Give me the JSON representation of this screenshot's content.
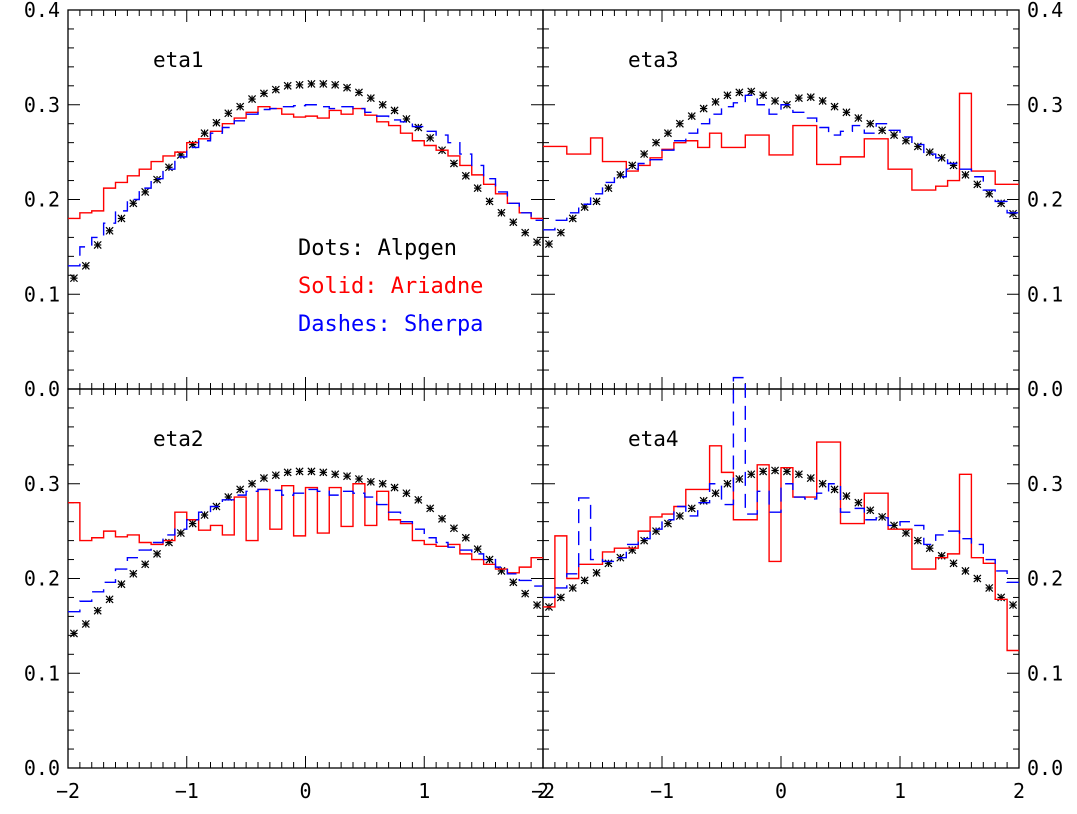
{
  "chart_data": {
    "type": "line",
    "layout": "2x2 panels with shared axes",
    "xlim": [
      -2,
      2
    ],
    "ylim": [
      0,
      0.4
    ],
    "x_ticks": [
      "−2",
      "−1",
      "0",
      "1",
      "2"
    ],
    "x_tick_values": [
      -2,
      -1,
      0,
      1,
      2
    ],
    "y_ticks": [
      "0.0",
      "0.1",
      "0.2",
      "0.3",
      "0.4"
    ],
    "y_tick_values": [
      0,
      0.1,
      0.2,
      0.3,
      0.4
    ],
    "legend": {
      "placement": "inside top-left panel, center-right",
      "entries": [
        {
          "label": "Dots: Alpgen",
          "color": "#000000",
          "style": "markers"
        },
        {
          "label": "Solid: Ariadne",
          "color": "#ff0000",
          "style": "solid-histogram"
        },
        {
          "label": "Dashes: Sherpa",
          "color": "#0000ff",
          "style": "dashed-histogram"
        }
      ]
    },
    "bin_edges": [
      -2.0,
      -1.9,
      -1.8,
      -1.7,
      -1.6,
      -1.5,
      -1.4,
      -1.3,
      -1.2,
      -1.1,
      -1.0,
      -0.9,
      -0.8,
      -0.7,
      -0.6,
      -0.5,
      -0.4,
      -0.3,
      -0.2,
      -0.1,
      0.0,
      0.1,
      0.2,
      0.3,
      0.4,
      0.5,
      0.6,
      0.7,
      0.8,
      0.9,
      1.0,
      1.1,
      1.2,
      1.3,
      1.4,
      1.5,
      1.6,
      1.7,
      1.8,
      1.9,
      2.0
    ],
    "panels": [
      {
        "label": "eta1",
        "position": "top-left",
        "series": [
          {
            "name": "Alpgen",
            "color": "#000000",
            "style": "markers",
            "values": [
              0.117,
              0.13,
              0.152,
              0.167,
              0.18,
              0.196,
              0.208,
              0.221,
              0.234,
              0.247,
              0.258,
              0.27,
              0.281,
              0.291,
              0.298,
              0.306,
              0.312,
              0.316,
              0.32,
              0.321,
              0.322,
              0.322,
              0.321,
              0.318,
              0.313,
              0.307,
              0.3,
              0.294,
              0.285,
              0.276,
              0.265,
              0.252,
              0.238,
              0.225,
              0.212,
              0.198,
              0.186,
              0.176,
              0.165,
              0.155
            ]
          },
          {
            "name": "Ariadne",
            "color": "#ff0000",
            "style": "solid",
            "values": [
              0.18,
              0.186,
              0.188,
              0.212,
              0.218,
              0.225,
              0.232,
              0.24,
              0.246,
              0.25,
              0.26,
              0.264,
              0.272,
              0.28,
              0.286,
              0.292,
              0.298,
              0.296,
              0.29,
              0.287,
              0.288,
              0.286,
              0.294,
              0.29,
              0.296,
              0.289,
              0.282,
              0.278,
              0.27,
              0.262,
              0.257,
              0.252,
              0.246,
              0.236,
              0.226,
              0.216,
              0.206,
              0.196,
              0.186,
              0.18
            ]
          },
          {
            "name": "Sherpa",
            "color": "#0000ff",
            "style": "dashed",
            "values": [
              0.13,
              0.15,
              0.16,
              0.175,
              0.188,
              0.2,
              0.212,
              0.222,
              0.232,
              0.245,
              0.255,
              0.262,
              0.27,
              0.276,
              0.283,
              0.29,
              0.295,
              0.296,
              0.298,
              0.299,
              0.3,
              0.298,
              0.296,
              0.298,
              0.296,
              0.292,
              0.288,
              0.284,
              0.282,
              0.277,
              0.272,
              0.268,
              0.26,
              0.248,
              0.236,
              0.222,
              0.208,
              0.196,
              0.186,
              0.178
            ]
          }
        ]
      },
      {
        "label": "eta3",
        "position": "top-right",
        "series": [
          {
            "name": "Alpgen",
            "color": "#000000",
            "style": "markers",
            "values": [
              0.153,
              0.165,
              0.18,
              0.192,
              0.198,
              0.212,
              0.226,
              0.236,
              0.248,
              0.26,
              0.27,
              0.28,
              0.288,
              0.296,
              0.303,
              0.31,
              0.313,
              0.314,
              0.31,
              0.304,
              0.3,
              0.307,
              0.308,
              0.304,
              0.298,
              0.292,
              0.286,
              0.28,
              0.273,
              0.268,
              0.262,
              0.256,
              0.25,
              0.244,
              0.236,
              0.226,
              0.216,
              0.206,
              0.196,
              0.185
            ]
          },
          {
            "name": "Ariadne",
            "color": "#ff0000",
            "style": "solid",
            "values": [
              0.256,
              0.256,
              0.248,
              0.248,
              0.265,
              0.24,
              0.24,
              0.23,
              0.236,
              0.244,
              0.253,
              0.26,
              0.262,
              0.255,
              0.27,
              0.255,
              0.255,
              0.268,
              0.268,
              0.247,
              0.247,
              0.278,
              0.278,
              0.237,
              0.237,
              0.245,
              0.245,
              0.264,
              0.264,
              0.232,
              0.232,
              0.21,
              0.21,
              0.214,
              0.22,
              0.312,
              0.23,
              0.23,
              0.216,
              0.216
            ]
          },
          {
            "name": "Sherpa",
            "color": "#0000ff",
            "style": "dashed",
            "values": [
              0.168,
              0.178,
              0.186,
              0.195,
              0.206,
              0.218,
              0.224,
              0.232,
              0.238,
              0.242,
              0.252,
              0.262,
              0.27,
              0.28,
              0.29,
              0.298,
              0.302,
              0.31,
              0.3,
              0.29,
              0.3,
              0.292,
              0.286,
              0.276,
              0.268,
              0.272,
              0.278,
              0.27,
              0.28,
              0.273,
              0.266,
              0.258,
              0.248,
              0.244,
              0.238,
              0.232,
              0.224,
              0.21,
              0.198,
              0.186
            ]
          }
        ]
      },
      {
        "label": "eta2",
        "position": "bottom-left",
        "series": [
          {
            "name": "Alpgen",
            "color": "#000000",
            "style": "markers",
            "values": [
              0.142,
              0.152,
              0.166,
              0.178,
              0.194,
              0.205,
              0.215,
              0.226,
              0.238,
              0.248,
              0.258,
              0.267,
              0.276,
              0.286,
              0.294,
              0.3,
              0.306,
              0.309,
              0.312,
              0.313,
              0.313,
              0.312,
              0.31,
              0.308,
              0.305,
              0.302,
              0.3,
              0.296,
              0.29,
              0.283,
              0.274,
              0.263,
              0.253,
              0.243,
              0.231,
              0.22,
              0.208,
              0.196,
              0.184,
              0.172
            ]
          },
          {
            "name": "Ariadne",
            "color": "#ff0000",
            "style": "solid",
            "values": [
              0.28,
              0.24,
              0.243,
              0.25,
              0.244,
              0.246,
              0.238,
              0.236,
              0.24,
              0.27,
              0.262,
              0.251,
              0.256,
              0.246,
              0.286,
              0.24,
              0.294,
              0.252,
              0.298,
              0.245,
              0.296,
              0.248,
              0.296,
              0.255,
              0.3,
              0.256,
              0.292,
              0.262,
              0.258,
              0.24,
              0.236,
              0.234,
              0.236,
              0.226,
              0.22,
              0.215,
              0.21,
              0.206,
              0.212,
              0.222
            ]
          },
          {
            "name": "Sherpa",
            "color": "#0000ff",
            "style": "dashed",
            "values": [
              0.165,
              0.176,
              0.186,
              0.196,
              0.21,
              0.222,
              0.23,
              0.238,
              0.246,
              0.252,
              0.262,
              0.27,
              0.276,
              0.283,
              0.288,
              0.292,
              0.294,
              0.293,
              0.288,
              0.29,
              0.294,
              0.292,
              0.288,
              0.292,
              0.29,
              0.286,
              0.278,
              0.27,
              0.26,
              0.252,
              0.243,
              0.238,
              0.233,
              0.23,
              0.226,
              0.22,
              0.212,
              0.205,
              0.198,
              0.192
            ]
          }
        ]
      },
      {
        "label": "eta4",
        "position": "bottom-right",
        "series": [
          {
            "name": "Alpgen",
            "color": "#000000",
            "style": "markers",
            "values": [
              0.17,
              0.18,
              0.19,
              0.198,
              0.206,
              0.216,
              0.222,
              0.23,
              0.24,
              0.25,
              0.258,
              0.266,
              0.274,
              0.282,
              0.29,
              0.3,
              0.305,
              0.31,
              0.313,
              0.314,
              0.313,
              0.31,
              0.306,
              0.3,
              0.294,
              0.287,
              0.28,
              0.272,
              0.265,
              0.256,
              0.248,
              0.24,
              0.232,
              0.224,
              0.216,
              0.208,
              0.2,
              0.19,
              0.18,
              0.172
            ]
          },
          {
            "name": "Ariadne",
            "color": "#ff0000",
            "style": "solid",
            "values": [
              0.17,
              0.245,
              0.2,
              0.215,
              0.215,
              0.228,
              0.232,
              0.232,
              0.25,
              0.265,
              0.268,
              0.276,
              0.294,
              0.294,
              0.34,
              0.312,
              0.262,
              0.262,
              0.32,
              0.218,
              0.317,
              0.286,
              0.286,
              0.344,
              0.344,
              0.258,
              0.258,
              0.29,
              0.29,
              0.252,
              0.252,
              0.21,
              0.21,
              0.222,
              0.226,
              0.31,
              0.222,
              0.216,
              0.178,
              0.124
            ]
          },
          {
            "name": "Sherpa",
            "color": "#0000ff",
            "style": "dashed",
            "values": [
              0.18,
              0.19,
              0.205,
              0.285,
              0.22,
              0.218,
              0.222,
              0.236,
              0.242,
              0.252,
              0.262,
              0.276,
              0.266,
              0.28,
              0.3,
              0.278,
              0.412,
              0.268,
              0.292,
              0.27,
              0.3,
              0.286,
              0.284,
              0.29,
              0.3,
              0.27,
              0.274,
              0.262,
              0.264,
              0.256,
              0.26,
              0.256,
              0.236,
              0.246,
              0.25,
              0.242,
              0.236,
              0.22,
              0.208,
              0.196
            ]
          }
        ]
      }
    ]
  }
}
